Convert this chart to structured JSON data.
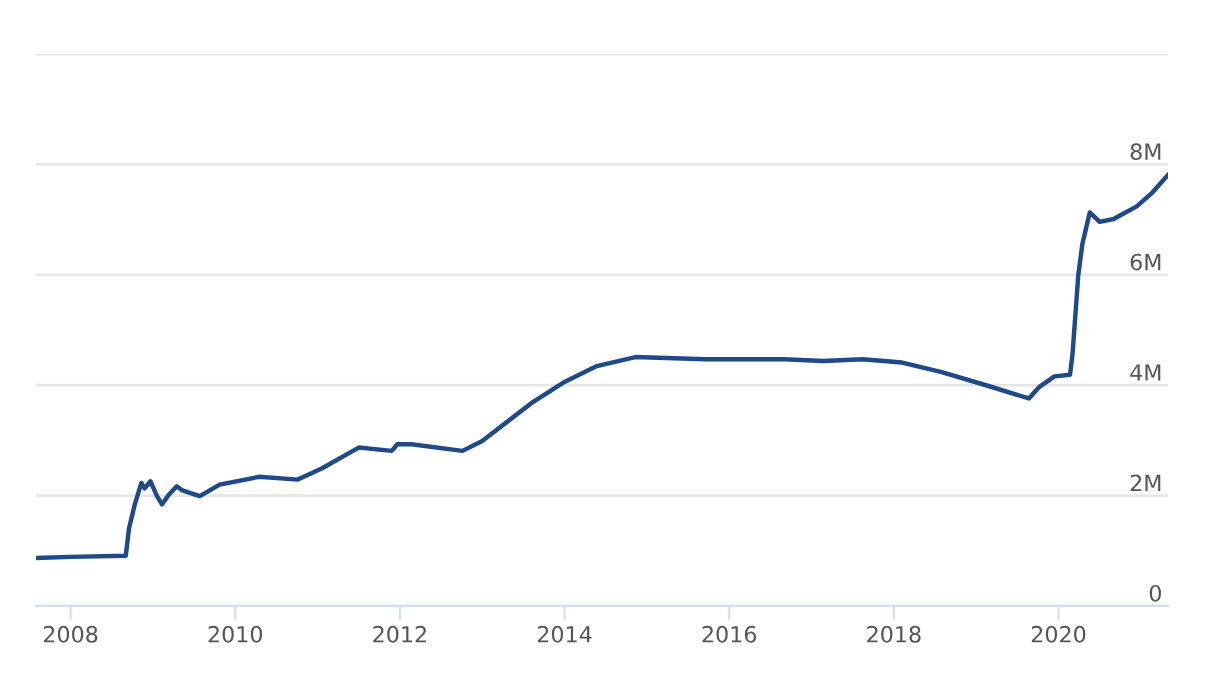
{
  "chart_data": {
    "type": "line",
    "x": [
      2007.58,
      2008.0,
      2008.67,
      2008.71,
      2008.78,
      2008.86,
      2008.9,
      2008.97,
      2009.05,
      2009.11,
      2009.19,
      2009.29,
      2009.35,
      2009.43,
      2009.57,
      2009.81,
      2010.29,
      2010.76,
      2011.05,
      2011.5,
      2011.9,
      2011.97,
      2012.14,
      2012.76,
      2013.0,
      2013.62,
      2014.0,
      2014.38,
      2014.86,
      2015.71,
      2016.67,
      2017.14,
      2017.62,
      2018.1,
      2018.57,
      2019.14,
      2019.64,
      2019.76,
      2019.95,
      2020.14,
      2020.17,
      2020.24,
      2020.29,
      2020.38,
      2020.5,
      2020.67,
      2020.95,
      2021.14,
      2021.33
    ],
    "series": [
      {
        "color": "#1f4a87",
        "values": [
          0.87,
          0.89,
          0.91,
          1.41,
          1.84,
          2.23,
          2.13,
          2.26,
          1.99,
          1.84,
          2.01,
          2.17,
          2.1,
          2.06,
          1.99,
          2.2,
          2.34,
          2.29,
          2.49,
          2.87,
          2.81,
          2.93,
          2.93,
          2.81,
          2.99,
          3.7,
          4.06,
          4.34,
          4.51,
          4.47,
          4.47,
          4.44,
          4.47,
          4.41,
          4.24,
          3.99,
          3.76,
          3.96,
          4.16,
          4.19,
          4.56,
          5.99,
          6.56,
          7.13,
          6.96,
          7.01,
          7.24,
          7.49,
          7.81
        ]
      }
    ],
    "xlim": [
      2007.58,
      2021.33
    ],
    "xticks": [
      2008,
      2010,
      2012,
      2014,
      2016,
      2018,
      2020
    ],
    "ylim": [
      0,
      10
    ],
    "yticks": [
      {
        "value": 0,
        "label": "0"
      },
      {
        "value": 2,
        "label": "2M"
      },
      {
        "value": 4,
        "label": "4M"
      },
      {
        "value": 6,
        "label": "6M"
      },
      {
        "value": 8,
        "label": "8M"
      },
      {
        "value": 10,
        "label": null
      }
    ],
    "grid": "y",
    "legend": false,
    "marker": "none",
    "line_style": "solid"
  }
}
